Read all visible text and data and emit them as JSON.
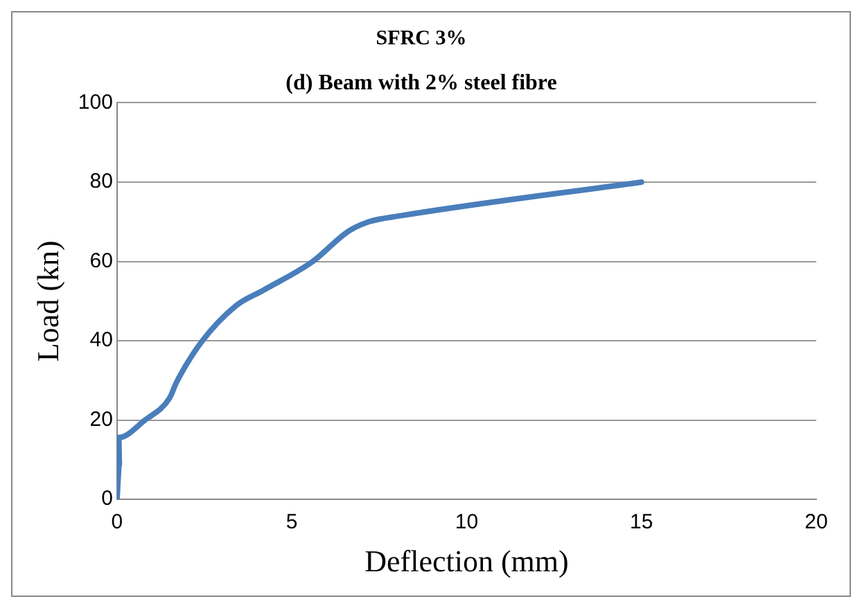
{
  "chart_data": {
    "type": "line",
    "title": "SFRC 3%",
    "annotations": [
      "(d) Beam with 2% steel fibre"
    ],
    "xlabel": "Deflection (mm)",
    "ylabel": "Load (kn)",
    "x": [
      0,
      0.07,
      0.05,
      0.8,
      1.5,
      1.7,
      2.4,
      3.4,
      4.2,
      5.6,
      6.6,
      7.2,
      8.1,
      15
    ],
    "series": [
      {
        "color": "#4a7ebb",
        "values": [
          0,
          9,
          15.6,
          20,
          25.5,
          29.5,
          39.5,
          48.8,
          52.8,
          60,
          67.5,
          70,
          71.5,
          80
        ]
      }
    ],
    "xlim": [
      0,
      20
    ],
    "xticks": [
      0,
      5,
      10,
      15,
      20
    ],
    "ylim": [
      0,
      100
    ],
    "yticks": [
      0,
      20,
      40,
      60,
      80,
      100
    ],
    "grid": "y",
    "legend": false,
    "marker": "none",
    "line_style": "solid"
  }
}
